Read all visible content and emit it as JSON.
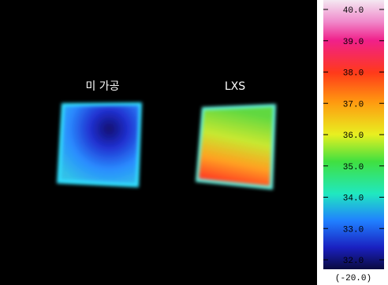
{
  "image": {
    "labels": [
      "미 가공",
      "LXS"
    ]
  },
  "scale": {
    "ticks": [
      "40.0",
      "39.0",
      "38.0",
      "37.0",
      "36.0",
      "35.0",
      "34.0",
      "33.0",
      "32.0"
    ],
    "offset": "(-20.0)"
  }
}
